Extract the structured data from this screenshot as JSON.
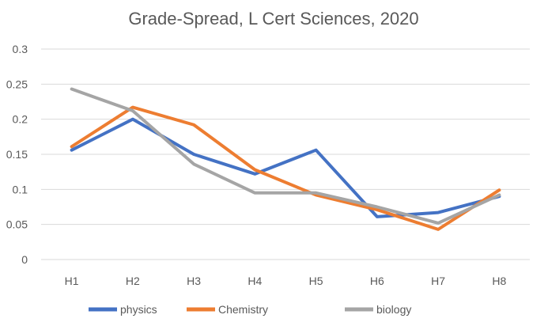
{
  "chart_data": {
    "type": "line",
    "title": "Grade-Spread, L Cert Sciences, 2020",
    "xlabel": "",
    "ylabel": "",
    "categories": [
      "H1",
      "H2",
      "H3",
      "H4",
      "H5",
      "H6",
      "H7",
      "H8"
    ],
    "ylim": [
      0,
      0.3
    ],
    "yticks": [
      0,
      0.05,
      0.1,
      0.15,
      0.2,
      0.25,
      0.3
    ],
    "ytick_labels": [
      "0",
      "0.05",
      "0.1",
      "0.15",
      "0.2",
      "0.25",
      "0.3"
    ],
    "grid": true,
    "legend_position": "bottom",
    "series": [
      {
        "name": "physics",
        "color": "#4472c4",
        "values": [
          0.156,
          0.2,
          0.15,
          0.122,
          0.156,
          0.061,
          0.067,
          0.09
        ]
      },
      {
        "name": "Chemistry",
        "color": "#ed7d31",
        "values": [
          0.161,
          0.217,
          0.192,
          0.128,
          0.092,
          0.071,
          0.043,
          0.099
        ]
      },
      {
        "name": "biology",
        "color": "#a5a5a5",
        "values": [
          0.243,
          0.212,
          0.136,
          0.095,
          0.095,
          0.075,
          0.052,
          0.092
        ]
      }
    ]
  }
}
